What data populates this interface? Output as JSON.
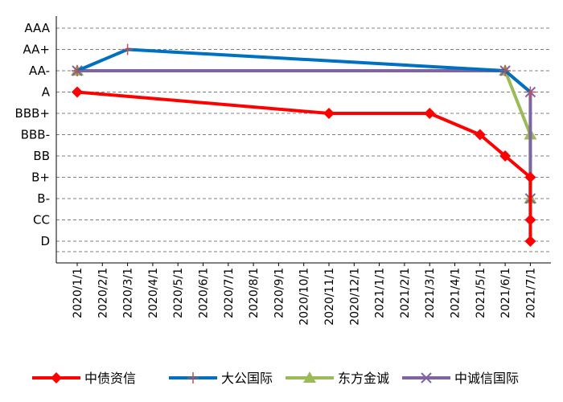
{
  "chart_data": {
    "type": "line",
    "title": "",
    "xlabel": "",
    "ylabel": "",
    "y_categories": [
      "D",
      "CC",
      "B-",
      "B+",
      "BB",
      "BBB-",
      "BBB+",
      "A",
      "AA-",
      "AA+",
      "AAA"
    ],
    "x_ticks": [
      "2020/1/1",
      "2020/2/1",
      "2020/3/1",
      "2020/4/1",
      "2020/5/1",
      "2020/6/1",
      "2020/7/1",
      "2020/8/1",
      "2020/9/1",
      "2020/10/1",
      "2020/11/1",
      "2020/12/1",
      "2021/1/1",
      "2021/2/1",
      "2021/3/1",
      "2021/4/1",
      "2021/5/1",
      "2021/6/1",
      "2021/7/1"
    ],
    "xlim": [
      "2020/1/1",
      "2021/7/1"
    ],
    "grid": "horizontal dashed",
    "legend_position": "bottom",
    "series": [
      {
        "name": "中债资信",
        "color": "#ff0000",
        "marker": "diamond",
        "points": [
          {
            "date": "2020/1/1",
            "rating": "A"
          },
          {
            "date": "2020/11/1",
            "rating": "BBB+"
          },
          {
            "date": "2021/3/1",
            "rating": "BBB+"
          },
          {
            "date": "2021/5/1",
            "rating": "BBB-"
          },
          {
            "date": "2021/6/1",
            "rating": "BB"
          },
          {
            "date": "2021/7/1",
            "rating": "B+"
          },
          {
            "date": "2021/7/1",
            "rating": "CC"
          },
          {
            "date": "2021/7/1",
            "rating": "D"
          }
        ]
      },
      {
        "name": "大公国际",
        "color": "#0070c0",
        "marker": "plus",
        "points": [
          {
            "date": "2020/1/1",
            "rating": "AA-"
          },
          {
            "date": "2020/3/1",
            "rating": "AA+"
          },
          {
            "date": "2021/6/1",
            "rating": "AA-"
          },
          {
            "date": "2021/7/1",
            "rating": "A"
          }
        ]
      },
      {
        "name": "东方金诚",
        "color": "#9bbb59",
        "marker": "triangle",
        "points": [
          {
            "date": "2020/1/1",
            "rating": "AA-"
          },
          {
            "date": "2021/6/1",
            "rating": "AA-"
          },
          {
            "date": "2021/7/1",
            "rating": "BBB-"
          },
          {
            "date": "2021/7/1",
            "rating": "B-"
          }
        ]
      },
      {
        "name": "中诚信国际",
        "color": "#8064a2",
        "marker": "x",
        "points": [
          {
            "date": "2020/1/1",
            "rating": "AA-"
          },
          {
            "date": "2021/6/1",
            "rating": "AA-"
          },
          {
            "date": "2021/7/1",
            "rating": "A"
          },
          {
            "date": "2021/7/1",
            "rating": "B-"
          }
        ]
      }
    ]
  }
}
